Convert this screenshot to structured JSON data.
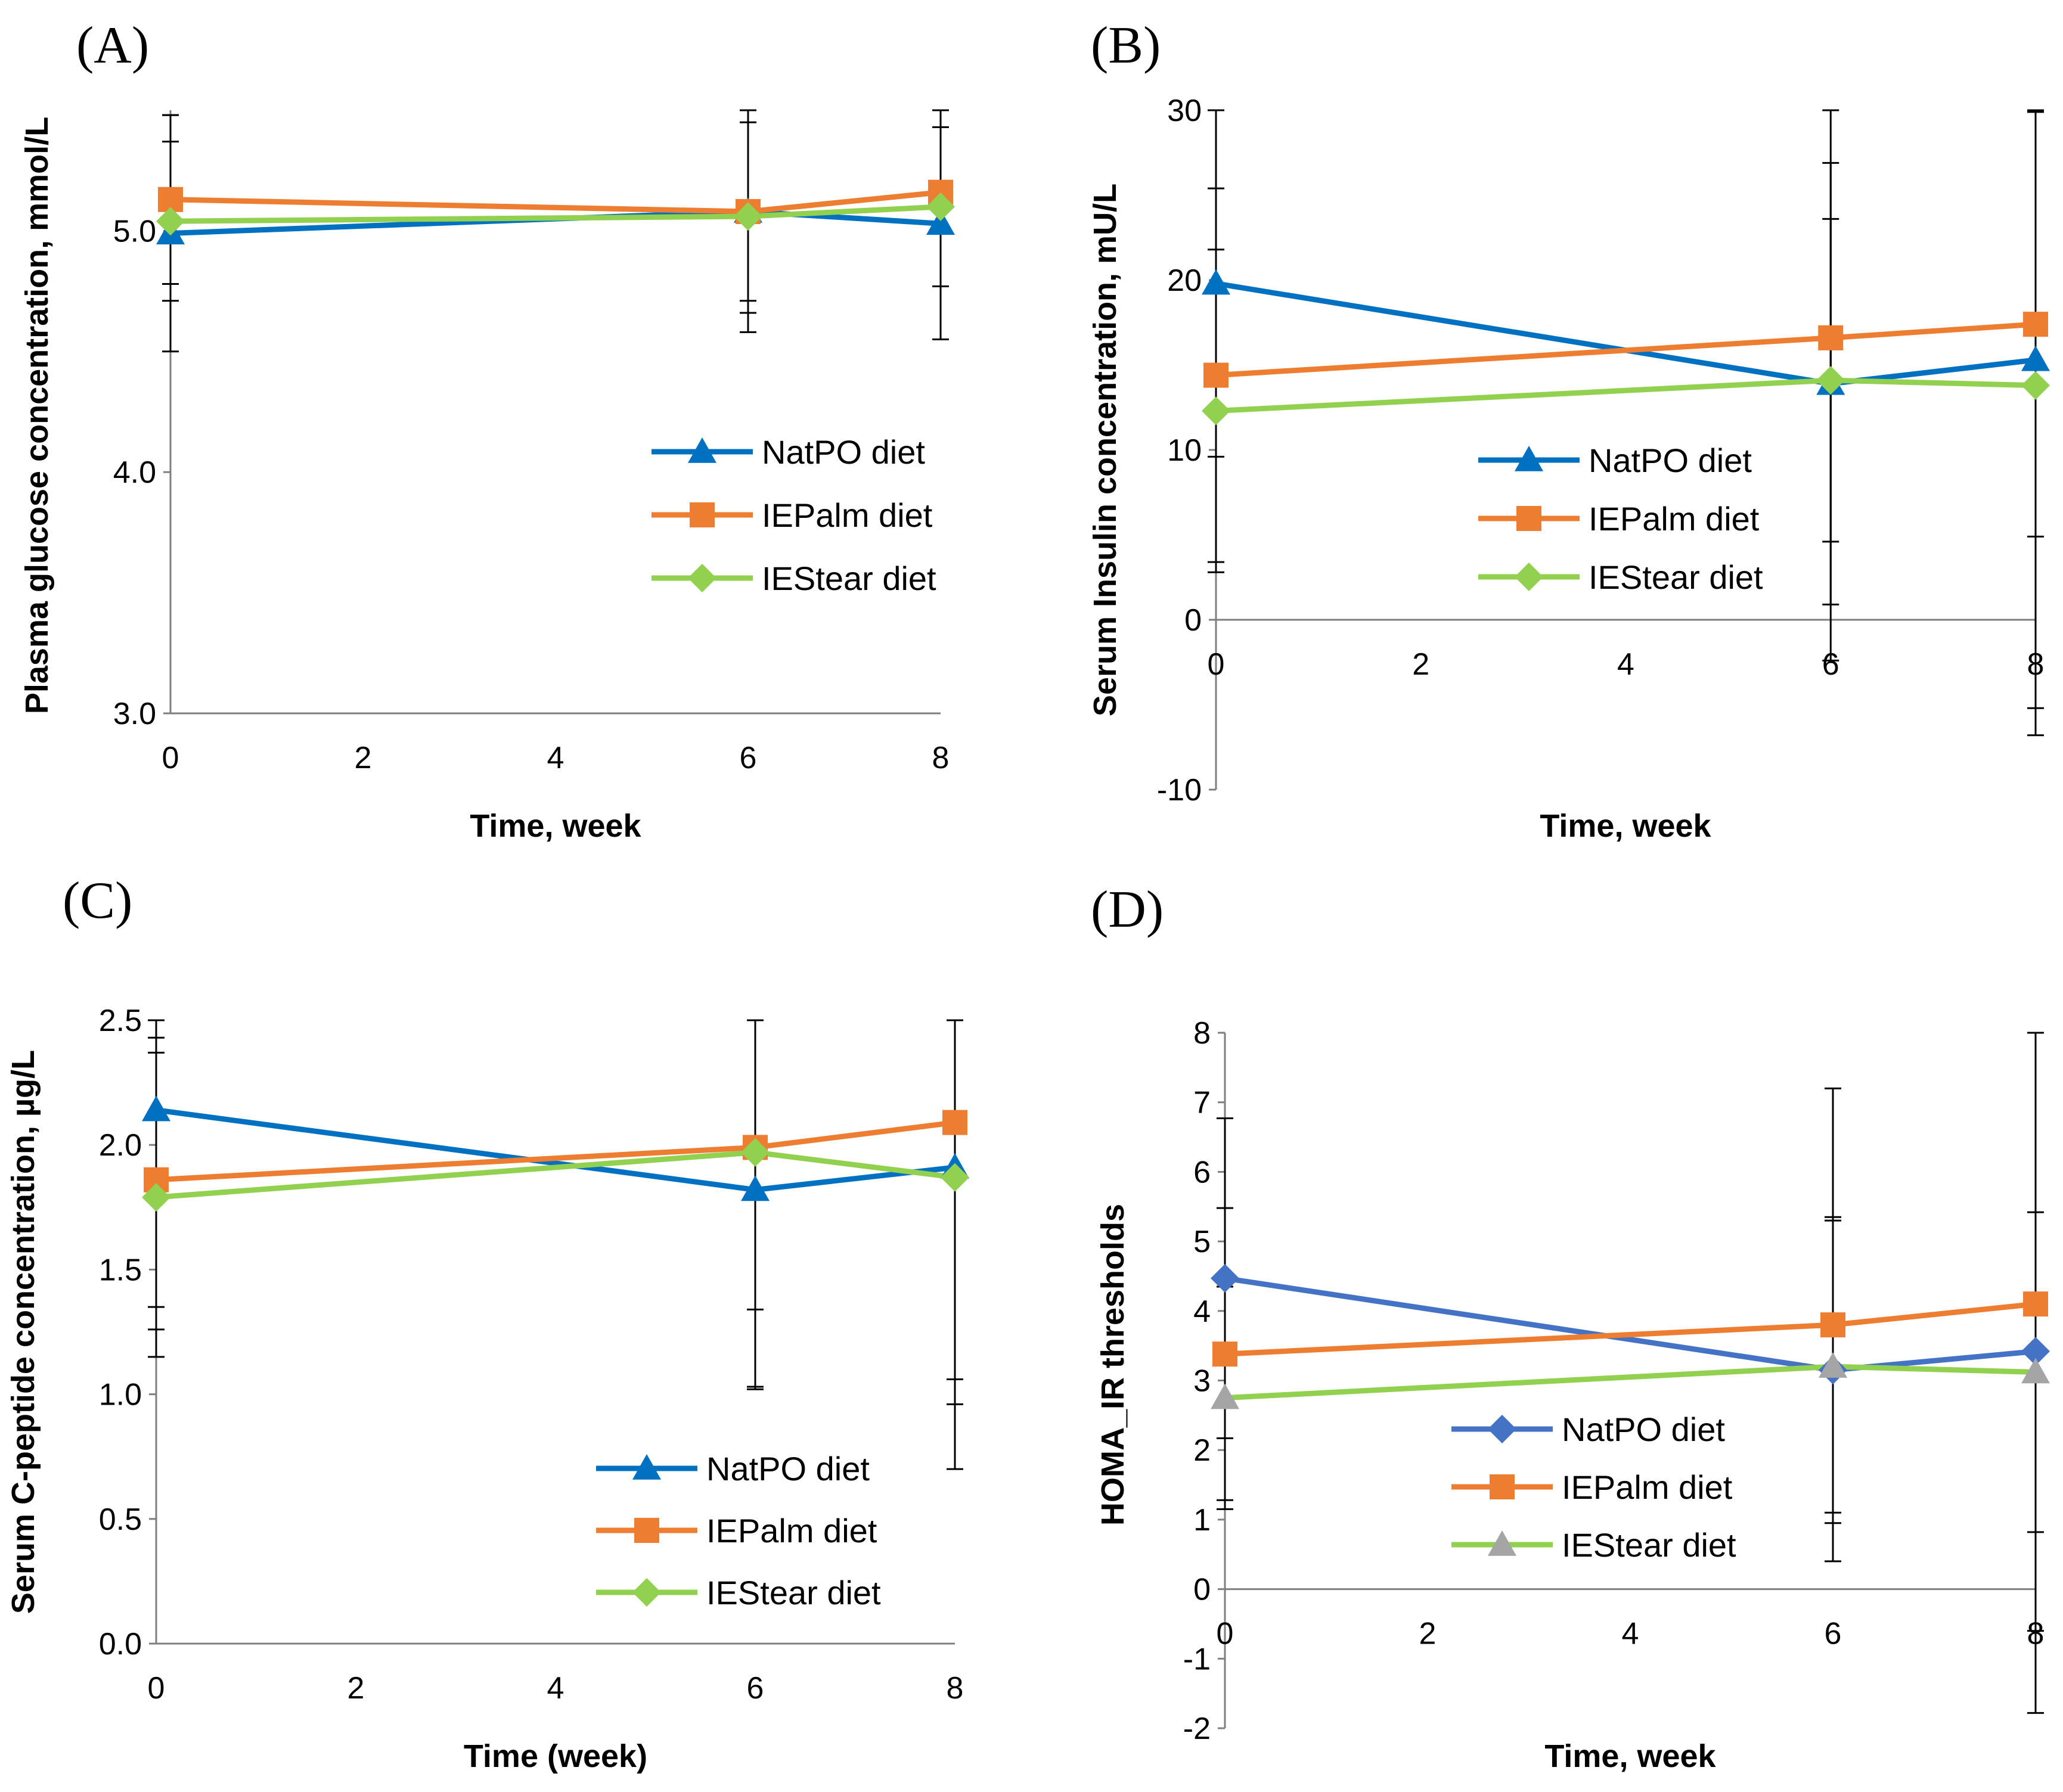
{
  "chart_data": [
    {
      "panel": "(A)",
      "type": "line",
      "xlabel": "Time, week",
      "ylabel": "Plasma glucose concentration, mmol/L",
      "x": [
        0,
        6,
        8
      ],
      "xlim": [
        0,
        8
      ],
      "ylim": [
        3.0,
        5.5
      ],
      "xticks": [
        0,
        2,
        4,
        6,
        8
      ],
      "yticks": [
        3.0,
        4.0,
        5.0
      ],
      "ytick_labels": [
        "3.0",
        "4.0",
        "5.0"
      ],
      "legend": "right-middle",
      "series": [
        {
          "name": "NatPO diet",
          "color": "#0070C0",
          "marker": "triangle",
          "values": [
            4.99,
            5.08,
            5.03
          ],
          "error": [
            0.49,
            0.42,
            0.48
          ]
        },
        {
          "name": "IEPalm diet",
          "color": "#ED7D31",
          "marker": "square",
          "values": [
            5.13,
            5.08,
            5.16
          ],
          "error": [
            0.35,
            0.37,
            0.39
          ]
        },
        {
          "name": "IEStear diet",
          "color": "#92D050",
          "marker": "diamond",
          "values": [
            5.04,
            5.06,
            5.1
          ],
          "error": [
            0.33,
            0.48,
            0.33
          ]
        }
      ]
    },
    {
      "panel": "(B)",
      "type": "line",
      "xlabel": "Time, week",
      "ylabel": "Serum Insulin concentration, mU/L",
      "x": [
        0,
        6,
        8
      ],
      "xlim": [
        0,
        8
      ],
      "ylim": [
        -10,
        30
      ],
      "xticks": [
        0,
        2,
        4,
        6,
        8
      ],
      "yticks": [
        -10,
        0,
        10,
        20,
        30
      ],
      "ytick_labels": [
        "-10",
        "0",
        "10",
        "20",
        "30"
      ],
      "legend": "right-middle",
      "series": [
        {
          "name": "NatPO diet",
          "color": "#0070C0",
          "marker": "triangle",
          "values": [
            19.8,
            13.9,
            15.3
          ],
          "error": [
            10.2,
            13.0,
            20.5
          ]
        },
        {
          "name": "IEPalm diet",
          "color": "#ED7D31",
          "marker": "square",
          "values": [
            14.4,
            16.6,
            17.4
          ],
          "error": [
            11.0,
            19.0,
            12.5
          ]
        },
        {
          "name": "IEStear diet",
          "color": "#92D050",
          "marker": "diamond",
          "values": [
            12.3,
            14.1,
            13.8
          ],
          "error": [
            9.5,
            9.5,
            20.6
          ]
        }
      ]
    },
    {
      "panel": "(C)",
      "type": "line",
      "xlabel": "Time (week)",
      "ylabel": "Serum C-peptide concentration, µg/L",
      "x": [
        0,
        6,
        8
      ],
      "xlim": [
        0,
        8
      ],
      "ylim": [
        0.0,
        2.5
      ],
      "xticks": [
        0,
        2,
        4,
        6,
        8
      ],
      "yticks": [
        0.0,
        0.5,
        1.0,
        1.5,
        2.0,
        2.5
      ],
      "ytick_labels": [
        "0.0",
        "0.5",
        "1.0",
        "1.5",
        "2.0",
        "2.5"
      ],
      "legend": "right-bottom",
      "series": [
        {
          "name": "NatPO diet",
          "color": "#0070C0",
          "marker": "triangle",
          "values": [
            2.14,
            1.82,
            1.91
          ],
          "error": [
            0.88,
            0.8,
            1.21
          ]
        },
        {
          "name": "IEPalm diet",
          "color": "#ED7D31",
          "marker": "square",
          "values": [
            1.86,
            1.99,
            2.09
          ],
          "error": [
            0.51,
            0.96,
            1.13
          ]
        },
        {
          "name": "IEStear diet",
          "color": "#92D050",
          "marker": "diamond",
          "values": [
            1.79,
            1.97,
            1.87
          ],
          "error": [
            0.64,
            0.63,
            0.81
          ]
        }
      ]
    },
    {
      "panel": "(D)",
      "type": "line",
      "xlabel": "Time, week",
      "ylabel": "HOMA_IR thresholds",
      "x": [
        0,
        6,
        8
      ],
      "xlim": [
        0,
        8
      ],
      "ylim": [
        -2,
        8
      ],
      "xticks": [
        0,
        2,
        4,
        6,
        8
      ],
      "yticks": [
        -2,
        -1,
        0,
        1,
        2,
        3,
        4,
        5,
        6,
        7,
        8
      ],
      "ytick_labels": [
        "-2",
        "-1",
        "0",
        "1",
        "2",
        "3",
        "4",
        "5",
        "6",
        "7",
        "8"
      ],
      "legend": "center",
      "series": [
        {
          "name": "NatPO diet",
          "color": "#4472C4",
          "marker": "diamond",
          "values": [
            4.47,
            3.15,
            3.42
          ],
          "error": [
            2.3,
            2.2,
            5.2
          ]
        },
        {
          "name": "IEPalm diet",
          "color": "#ED7D31",
          "marker": "square",
          "values": [
            3.38,
            3.8,
            4.1
          ],
          "error": [
            2.1,
            3.4,
            4.7
          ]
        },
        {
          "name": "IEStear diet",
          "color": "#92D050",
          "marker": "triangle",
          "marker_color": "#A5A5A5",
          "values": [
            2.75,
            3.2,
            3.12
          ],
          "error": [
            1.6,
            2.1,
            2.3
          ]
        }
      ]
    }
  ]
}
